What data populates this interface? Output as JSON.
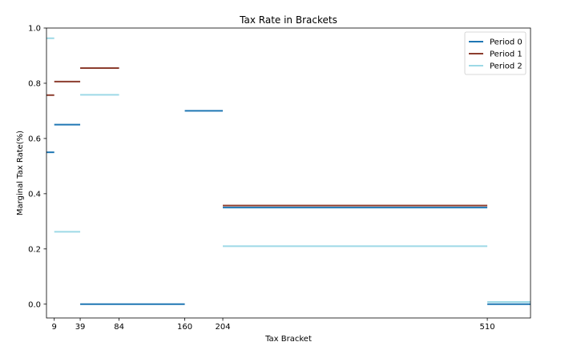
{
  "chart_data": {
    "type": "line",
    "title": "Tax Rate in Brackets",
    "xlabel": "Tax Bracket",
    "ylabel": "Marginal Tax Rate(%)",
    "xlim": [
      0,
      560
    ],
    "ylim": [
      -0.05,
      1.0
    ],
    "x_ticks": [
      9,
      39,
      84,
      160,
      204,
      510
    ],
    "x_tick_labels": [
      "9",
      "39",
      "84",
      "160",
      "204",
      "510"
    ],
    "y_ticks": [
      0.0,
      0.2,
      0.4,
      0.6,
      0.8,
      1.0
    ],
    "y_tick_labels": [
      "0.0",
      "0.2",
      "0.4",
      "0.6",
      "0.8",
      "1.0"
    ],
    "grid": false,
    "legend_position": "top-right",
    "series": [
      {
        "name": "Period 0",
        "color": "#1f77b4",
        "segments": [
          {
            "x0": 0,
            "x1": 9,
            "y": 0.55
          },
          {
            "x0": 9,
            "x1": 39,
            "y": 0.65
          },
          {
            "x0": 39,
            "x1": 160,
            "y": 0.0
          },
          {
            "x0": 160,
            "x1": 204,
            "y": 0.7
          },
          {
            "x0": 204,
            "x1": 510,
            "y": 0.35
          },
          {
            "x0": 510,
            "x1": 560,
            "y": 0.0
          }
        ]
      },
      {
        "name": "Period 1",
        "color": "#8c3d2e",
        "segments": [
          {
            "x0": 0,
            "x1": 9,
            "y": 0.757
          },
          {
            "x0": 9,
            "x1": 39,
            "y": 0.806
          },
          {
            "x0": 39,
            "x1": 84,
            "y": 0.855
          },
          {
            "x0": 204,
            "x1": 510,
            "y": 0.357
          }
        ]
      },
      {
        "name": "Period 2",
        "color": "#9dd9e6",
        "segments": [
          {
            "x0": 0,
            "x1": 9,
            "y": 0.963
          },
          {
            "x0": 9,
            "x1": 39,
            "y": 0.262
          },
          {
            "x0": 39,
            "x1": 84,
            "y": 0.758
          },
          {
            "x0": 204,
            "x1": 510,
            "y": 0.21
          },
          {
            "x0": 510,
            "x1": 560,
            "y": 0.008
          }
        ]
      }
    ]
  }
}
